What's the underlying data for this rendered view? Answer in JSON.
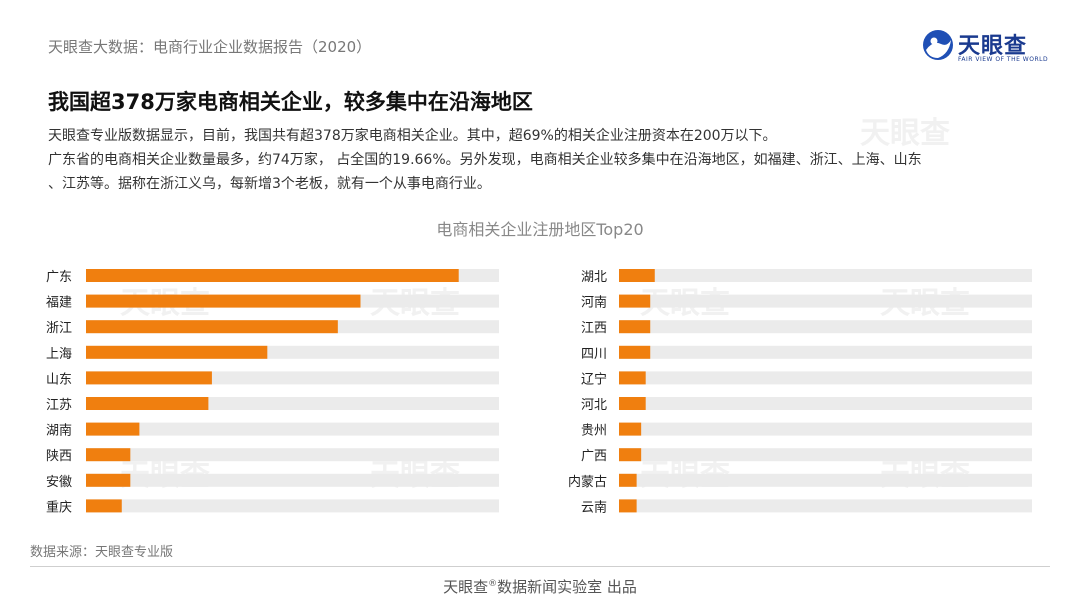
{
  "header": {
    "title": "天眼查大数据：电商行业企业数据报告（2020）",
    "logo_text": "天眼查",
    "logo_sub": "FAIR VIEW OF THE WORLD"
  },
  "headline": "我国超378万家电商相关企业，较多集中在沿海地区",
  "body": {
    "line1": "天眼查专业版数据显示，目前，我国共有超378万家电商相关企业。其中，超69%的相关企业注册资本在200万以下。",
    "line2": "广东省的电商相关企业数量最多，约74万家， 占全国的19.66%。另外发现，电商相关企业较多集中在沿海地区，如福建、浙江、上海、山东",
    "line3": "、江苏等。据称在浙江义乌，每新增3个老板，就有一个从事电商行业。"
  },
  "chart_data": {
    "type": "bar",
    "orientation": "horizontal",
    "title": "电商相关企业注册地区Top20",
    "colors": {
      "bar": "#f07f0f",
      "track": "#ebebeb"
    },
    "panels": [
      {
        "categories": [
          "广东",
          "福建",
          "浙江",
          "上海",
          "山东",
          "江苏",
          "湖南",
          "陕西",
          "安徽",
          "重庆"
        ],
        "values": [
          74,
          54.5,
          50,
          36,
          25,
          24.3,
          10.6,
          8.8,
          8.8,
          7.1
        ],
        "track_max": 82
      },
      {
        "categories": [
          "湖北",
          "河南",
          "江西",
          "四川",
          "辽宁",
          "河北",
          "贵州",
          "广西",
          "内蒙古",
          "云南"
        ],
        "values": [
          7.1,
          6.2,
          6.2,
          6.2,
          5.3,
          5.3,
          4.4,
          4.4,
          3.5,
          3.5
        ],
        "track_max": 82
      }
    ]
  },
  "source": "数据来源：天眼查专业版",
  "footer": {
    "brand": "天眼查",
    "reg": "®",
    "rest": "数据新闻实验室 出品"
  },
  "watermark": "天眼查"
}
